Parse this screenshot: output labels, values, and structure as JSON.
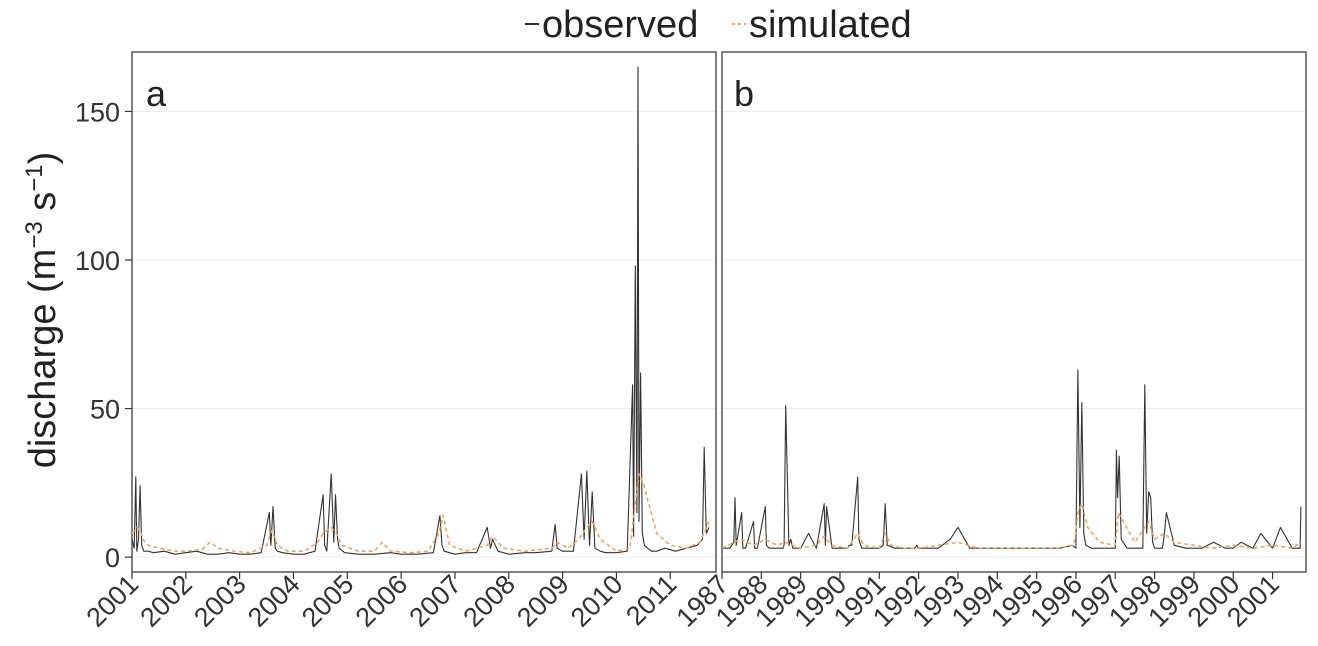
{
  "legend": {
    "observed_label": "observed",
    "simulated_label": "simulated",
    "position": "top-center"
  },
  "colors": {
    "observed": "#333333",
    "simulated": "#f4a25a",
    "panel_border": "#555555",
    "grid": "#ececec"
  },
  "chart_data": [
    {
      "type": "line",
      "panel_label": "a",
      "ylabel": "discharge (m⁻³ s⁻¹)",
      "ylabel_parts": [
        "discharge (m",
        "−3",
        " s",
        "−1",
        ")"
      ],
      "ylim": [
        -5,
        170
      ],
      "yticks": [
        0,
        50,
        100,
        150
      ],
      "ytick_labels": [
        "0",
        "50",
        "100",
        "150"
      ],
      "xlim": [
        2001.0,
        2011.85
      ],
      "xticks": [
        2001,
        2002,
        2003,
        2004,
        2005,
        2006,
        2007,
        2008,
        2009,
        2010,
        2011
      ],
      "xtick_labels": [
        "2001",
        "2002",
        "2003",
        "2004",
        "2005",
        "2006",
        "2007",
        "2008",
        "2009",
        "2010",
        "2011"
      ],
      "grid": true,
      "series": [
        {
          "name": "observed",
          "style": "solid",
          "x": [
            2001.0,
            2001.04,
            2001.07,
            2001.09,
            2001.12,
            2001.15,
            2001.18,
            2001.22,
            2001.3,
            2001.4,
            2001.6,
            2001.8,
            2002.0,
            2002.2,
            2002.4,
            2002.6,
            2002.8,
            2003.0,
            2003.2,
            2003.4,
            2003.55,
            2003.58,
            2003.62,
            2003.66,
            2003.7,
            2003.8,
            2004.0,
            2004.2,
            2004.4,
            2004.55,
            2004.58,
            2004.62,
            2004.7,
            2004.75,
            2004.78,
            2004.82,
            2004.85,
            2004.95,
            2005.2,
            2005.5,
            2005.8,
            2006.0,
            2006.3,
            2006.6,
            2006.72,
            2006.76,
            2006.8,
            2007.0,
            2007.2,
            2007.4,
            2007.6,
            2007.66,
            2007.7,
            2007.8,
            2007.9,
            2008.0,
            2008.3,
            2008.5,
            2008.8,
            2008.86,
            2008.9,
            2009.0,
            2009.2,
            2009.35,
            2009.4,
            2009.45,
            2009.5,
            2009.55,
            2009.6,
            2009.7,
            2009.8,
            2010.0,
            2010.2,
            2010.3,
            2010.32,
            2010.35,
            2010.38,
            2010.4,
            2010.42,
            2010.45,
            2010.48,
            2010.52,
            2010.58,
            2010.65,
            2010.75,
            2010.9,
            2011.1,
            2011.3,
            2011.5,
            2011.6,
            2011.63,
            2011.67,
            2011.72
          ],
          "values": [
            6,
            3,
            27,
            2,
            6,
            24,
            4,
            2,
            2,
            1.5,
            2,
            1,
            1.5,
            2,
            1,
            1,
            1.5,
            1,
            1,
            1.5,
            15,
            4,
            17,
            3,
            2,
            1.5,
            1,
            1,
            2,
            21,
            4,
            2,
            28,
            5,
            21,
            6,
            3,
            1.5,
            1,
            1,
            1.5,
            1,
            1,
            1.5,
            14,
            4,
            2,
            1,
            1.5,
            1.5,
            10,
            3,
            6,
            2,
            1.5,
            1,
            1.5,
            1.5,
            2,
            11,
            3,
            2,
            2,
            28,
            6,
            29,
            4,
            22,
            3,
            2,
            1.5,
            1.5,
            2,
            58,
            7,
            98,
            15,
            165,
            12,
            62,
            8,
            4,
            3,
            2,
            2,
            3,
            2,
            3,
            4,
            6,
            37,
            8,
            10
          ]
        },
        {
          "name": "simulated",
          "style": "dashed",
          "x": [
            2001.0,
            2001.05,
            2001.1,
            2001.15,
            2001.2,
            2001.3,
            2001.5,
            2001.8,
            2002.0,
            2002.3,
            2002.45,
            2002.6,
            2002.9,
            2003.2,
            2003.5,
            2003.6,
            2003.7,
            2003.9,
            2004.2,
            2004.45,
            2004.55,
            2004.7,
            2004.8,
            2004.9,
            2005.2,
            2005.5,
            2005.65,
            2005.8,
            2006.2,
            2006.5,
            2006.7,
            2006.78,
            2006.9,
            2007.2,
            2007.6,
            2007.7,
            2007.9,
            2008.3,
            2008.8,
            2008.9,
            2009.1,
            2009.3,
            2009.45,
            2009.55,
            2009.7,
            2010.0,
            2010.25,
            2010.35,
            2010.42,
            2010.5,
            2010.6,
            2010.75,
            2011.0,
            2011.3,
            2011.55,
            2011.65,
            2011.72
          ],
          "values": [
            8,
            9,
            10,
            9,
            6,
            4,
            3,
            2,
            2,
            2.5,
            5,
            3,
            2,
            1.5,
            4,
            9,
            4,
            2,
            2,
            5,
            8,
            10,
            8,
            4,
            2,
            2,
            5,
            2,
            1.5,
            2,
            8,
            14,
            4,
            2,
            4,
            7,
            3,
            2,
            3,
            5,
            3,
            6,
            10,
            12,
            6,
            2,
            3,
            18,
            28,
            25,
            18,
            8,
            4,
            3,
            5,
            9,
            12
          ]
        }
      ]
    },
    {
      "type": "line",
      "panel_label": "b",
      "ylim": [
        -5,
        170
      ],
      "yticks": [
        0,
        50,
        100,
        150
      ],
      "xlim": [
        1987.0,
        2001.85
      ],
      "xticks": [
        1987,
        1988,
        1989,
        1990,
        1991,
        1992,
        1993,
        1994,
        1995,
        1996,
        1997,
        1998,
        1999,
        2000,
        2001
      ],
      "xtick_labels": [
        "1987",
        "1988",
        "1989",
        "1990",
        "1991",
        "1992",
        "1993",
        "1994",
        "1995",
        "1996",
        "1997",
        "1998",
        "1999",
        "2000",
        "2001"
      ],
      "grid": true,
      "series": [
        {
          "name": "observed",
          "style": "solid",
          "x": [
            1987.0,
            1987.2,
            1987.3,
            1987.33,
            1987.36,
            1987.5,
            1987.53,
            1987.6,
            1987.8,
            1987.83,
            1987.9,
            1988.1,
            1988.13,
            1988.2,
            1988.4,
            1988.55,
            1988.58,
            1988.62,
            1988.7,
            1988.75,
            1988.8,
            1989.0,
            1989.2,
            1989.4,
            1989.6,
            1989.63,
            1989.66,
            1989.8,
            1990.0,
            1990.2,
            1990.23,
            1990.3,
            1990.45,
            1990.48,
            1990.55,
            1990.8,
            1991.0,
            1991.1,
            1991.15,
            1991.2,
            1991.4,
            1991.7,
            1991.9,
            1991.95,
            1992.0,
            1992.2,
            1992.5,
            1992.8,
            1993.0,
            1993.3,
            1993.6,
            1993.8,
            1994.0,
            1994.3,
            1994.6,
            1994.8,
            1995.0,
            1995.3,
            1995.6,
            1995.9,
            1996.0,
            1996.05,
            1996.1,
            1996.15,
            1996.2,
            1996.25,
            1996.4,
            1996.6,
            1996.8,
            1997.0,
            1997.03,
            1997.06,
            1997.1,
            1997.15,
            1997.3,
            1997.5,
            1997.7,
            1997.75,
            1997.8,
            1997.85,
            1997.9,
            1997.95,
            1998.0,
            1998.2,
            1998.25,
            1998.3,
            1998.5,
            1998.8,
            1999.0,
            1999.2,
            1999.5,
            1999.8,
            2000.0,
            2000.2,
            2000.5,
            2000.7,
            2001.0,
            2001.2,
            2001.5,
            2001.7,
            2001.72
          ],
          "values": [
            3,
            3,
            5,
            20,
            4,
            15,
            3,
            3,
            12,
            3,
            3,
            17,
            4,
            3,
            3,
            3,
            4,
            51,
            4,
            6,
            3,
            3,
            8,
            3,
            18,
            4,
            17,
            3,
            3,
            3,
            4,
            4,
            27,
            6,
            3,
            3,
            3,
            4,
            18,
            4,
            3,
            3,
            3,
            4,
            3,
            3,
            3,
            6,
            10,
            3,
            3,
            3,
            3,
            3,
            3,
            3,
            3,
            3,
            3,
            4,
            3,
            63,
            10,
            52,
            8,
            4,
            3,
            3,
            3,
            3,
            36,
            20,
            34,
            6,
            3,
            3,
            3,
            58,
            8,
            22,
            20,
            5,
            3,
            3,
            8,
            15,
            4,
            3,
            3,
            3,
            5,
            3,
            3,
            5,
            3,
            8,
            3,
            10,
            3,
            3,
            17
          ]
        },
        {
          "name": "simulated",
          "style": "dashed",
          "x": [
            1987.0,
            1987.3,
            1987.5,
            1987.8,
            1988.1,
            1988.4,
            1988.6,
            1988.8,
            1989.0,
            1989.4,
            1989.6,
            1989.8,
            1990.2,
            1990.45,
            1990.6,
            1991.0,
            1991.15,
            1991.3,
            1991.6,
            1992.0,
            1992.5,
            1993.0,
            1993.5,
            1994.0,
            1994.5,
            1995.0,
            1995.5,
            1995.95,
            1996.05,
            1996.15,
            1996.3,
            1996.6,
            1997.0,
            1997.08,
            1997.2,
            1997.5,
            1997.75,
            1997.85,
            1998.0,
            1998.25,
            1998.5,
            1999.0,
            1999.5,
            2000.0,
            2000.5,
            2001.0,
            2001.5,
            2001.72
          ],
          "values": [
            3,
            5,
            6,
            4,
            6,
            4,
            5,
            4,
            3,
            4,
            7,
            4,
            3,
            8,
            4,
            3,
            8,
            4,
            3,
            3,
            4,
            5,
            3,
            3,
            3,
            3,
            3,
            4,
            15,
            18,
            10,
            5,
            4,
            15,
            12,
            5,
            10,
            12,
            6,
            8,
            5,
            4,
            3,
            4,
            3,
            4,
            3,
            5
          ]
        }
      ]
    }
  ]
}
